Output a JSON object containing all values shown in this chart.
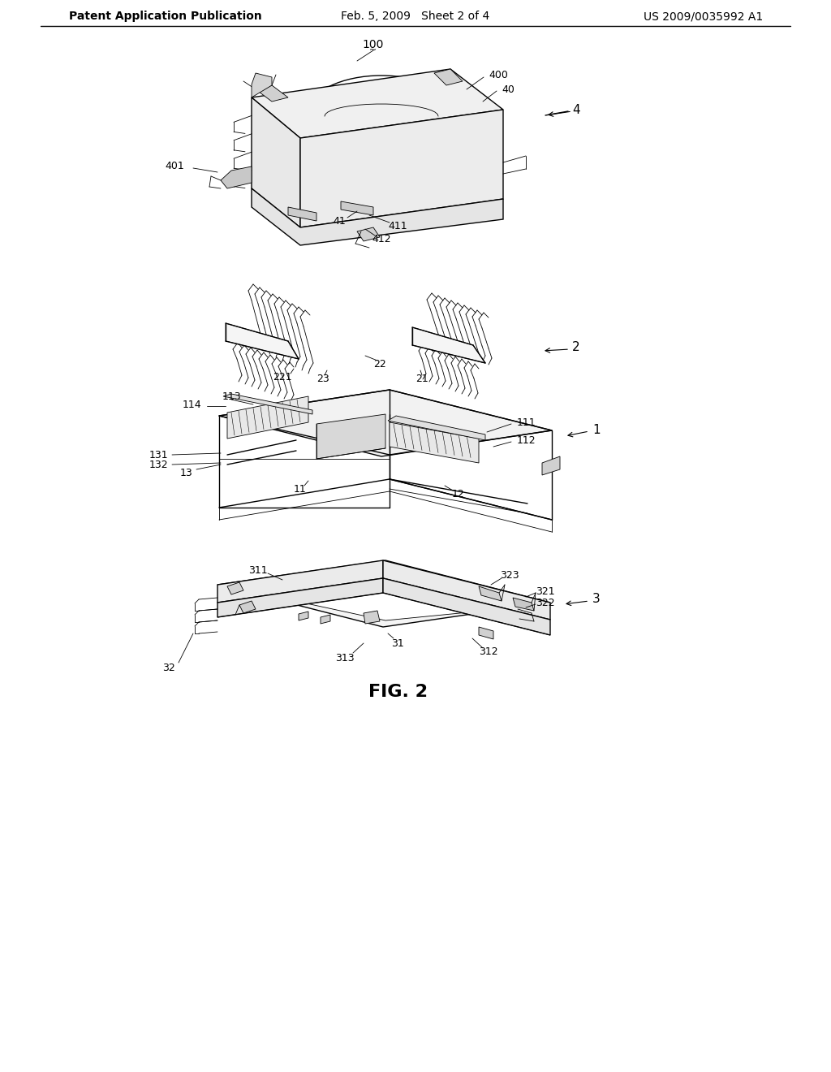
{
  "bg": "#ffffff",
  "header_left": "Patent Application Publication",
  "header_center": "Feb. 5, 2009   Sheet 2 of 4",
  "header_right": "US 2009/0035992 A1",
  "fig_label": "FIG. 2",
  "lw_thick": 1.5,
  "lw_med": 1.0,
  "lw_thin": 0.6,
  "lw_hair": 0.4
}
